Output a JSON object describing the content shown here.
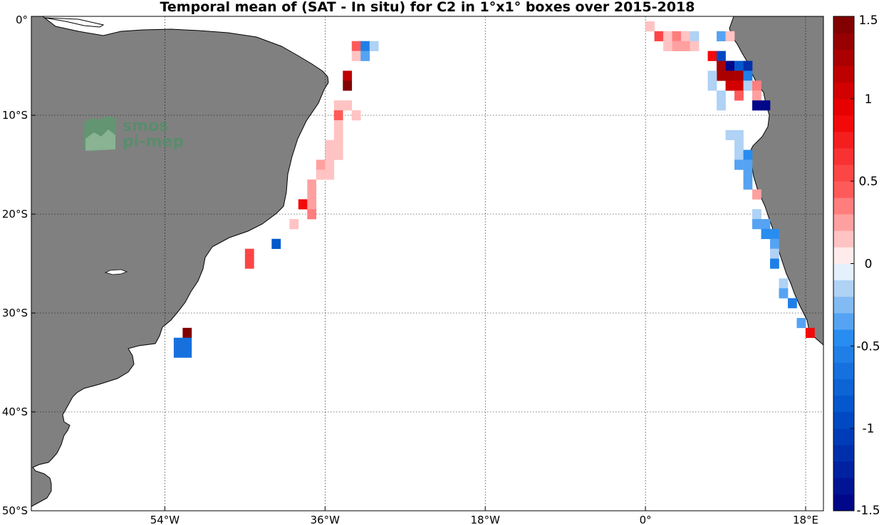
{
  "title": "Temporal mean of (SAT - In situ) for C2 in 1°x1° boxes over 2015-2018",
  "logo": {
    "line1": "smos",
    "line2": "pi-mep"
  },
  "map": {
    "lon_range": [
      -69,
      20
    ],
    "lat_range": [
      -50,
      0
    ],
    "land_color": "#808080",
    "ocean_color": "#ffffff",
    "gridlines": "dotted",
    "lon_ticks": [
      {
        "value": -54,
        "label": "54°W"
      },
      {
        "value": -36,
        "label": "36°W"
      },
      {
        "value": -18,
        "label": "18°W"
      },
      {
        "value": 0,
        "label": "0°"
      },
      {
        "value": 18,
        "label": "18°E"
      }
    ],
    "lat_ticks": [
      {
        "value": 0,
        "label": "0°"
      },
      {
        "value": -10,
        "label": "10°S"
      },
      {
        "value": -20,
        "label": "20°S"
      },
      {
        "value": -30,
        "label": "30°S"
      },
      {
        "value": -40,
        "label": "40°S"
      },
      {
        "value": -50,
        "label": "50°S"
      }
    ]
  },
  "colorbar": {
    "min": -1.5,
    "max": 1.5,
    "position": "right",
    "ticks": [
      {
        "value": 1.5,
        "label": "1.5"
      },
      {
        "value": 1,
        "label": "1"
      },
      {
        "value": 0.5,
        "label": "0.5"
      },
      {
        "value": 0,
        "label": "0"
      },
      {
        "value": -0.5,
        "label": "-0.5"
      },
      {
        "value": -1,
        "label": "-1"
      },
      {
        "value": -1.5,
        "label": "-1.5"
      }
    ]
  },
  "chart_data": {
    "type": "heatmap",
    "title": "Temporal mean of (SAT - In situ) for C2 in 1°x1° boxes over 2015-2018",
    "cell_size_deg": 1,
    "cells": [
      {
        "lon": -33,
        "lat": -3,
        "value": 0.4
      },
      {
        "lon": -32,
        "lat": -3,
        "value": -0.6
      },
      {
        "lon": -31,
        "lat": -3,
        "value": -0.1
      },
      {
        "lon": -33,
        "lat": -4,
        "value": 0.15
      },
      {
        "lon": -32,
        "lat": -4,
        "value": -0.3
      },
      {
        "lon": -34,
        "lat": -6,
        "value": 1.1
      },
      {
        "lon": -34,
        "lat": -7,
        "value": 1.5
      },
      {
        "lon": -35,
        "lat": -9,
        "value": 0.1
      },
      {
        "lon": -34,
        "lat": -9,
        "value": 0.1
      },
      {
        "lon": -35,
        "lat": -10,
        "value": 0.4
      },
      {
        "lon": -33,
        "lat": -10,
        "value": 0.1
      },
      {
        "lon": -35,
        "lat": -11,
        "value": 0.1
      },
      {
        "lon": -35,
        "lat": -12,
        "value": 0.1
      },
      {
        "lon": -36,
        "lat": -13,
        "value": 0.1
      },
      {
        "lon": -35,
        "lat": -13,
        "value": 0.1
      },
      {
        "lon": -36,
        "lat": -14,
        "value": 0.1
      },
      {
        "lon": -35,
        "lat": -14,
        "value": 0.1
      },
      {
        "lon": -37,
        "lat": -15,
        "value": 0.2
      },
      {
        "lon": -36,
        "lat": -15,
        "value": 0.1
      },
      {
        "lon": -37,
        "lat": -16,
        "value": 0.1
      },
      {
        "lon": -36,
        "lat": -16,
        "value": 0.1
      },
      {
        "lon": -38,
        "lat": -17,
        "value": 0.2
      },
      {
        "lon": -38,
        "lat": -18,
        "value": 0.2
      },
      {
        "lon": -39,
        "lat": -19,
        "value": 0.9
      },
      {
        "lon": -38,
        "lat": -19,
        "value": 0.2
      },
      {
        "lon": -38,
        "lat": -20,
        "value": 0.3
      },
      {
        "lon": -40,
        "lat": -21,
        "value": 0.1
      },
      {
        "lon": -42,
        "lat": -23,
        "value": -0.8
      },
      {
        "lon": -45,
        "lat": -24,
        "value": 0.5
      },
      {
        "lon": -45,
        "lat": -25,
        "value": 0.5
      },
      {
        "lon": -52,
        "lat": -32,
        "value": 1.5
      },
      {
        "lon": -53,
        "lat": -33,
        "value": -0.7
      },
      {
        "lon": -52,
        "lat": -33,
        "value": -0.7
      },
      {
        "lon": -53,
        "lat": -34,
        "value": -0.7
      },
      {
        "lon": -52,
        "lat": -34,
        "value": -0.7
      },
      {
        "lon": 0,
        "lat": -1,
        "value": 0.1
      },
      {
        "lon": 1,
        "lat": -2,
        "value": 0.5
      },
      {
        "lon": 2,
        "lat": -2,
        "value": 0.1
      },
      {
        "lon": 3,
        "lat": -2,
        "value": 0.3
      },
      {
        "lon": 4,
        "lat": -2,
        "value": 0.1
      },
      {
        "lon": 5,
        "lat": -2,
        "value": -0.1
      },
      {
        "lon": 8,
        "lat": -2,
        "value": -0.4
      },
      {
        "lon": 9,
        "lat": -2,
        "value": 0.1
      },
      {
        "lon": 2,
        "lat": -3,
        "value": 0.1
      },
      {
        "lon": 3,
        "lat": -3,
        "value": 0.2
      },
      {
        "lon": 4,
        "lat": -3,
        "value": 0.2
      },
      {
        "lon": 5,
        "lat": -3,
        "value": 0.1
      },
      {
        "lon": 7,
        "lat": -4,
        "value": 0.8
      },
      {
        "lon": 8,
        "lat": -4,
        "value": -0.9
      },
      {
        "lon": 8,
        "lat": -5,
        "value": 1.3
      },
      {
        "lon": 9,
        "lat": -5,
        "value": -1.5
      },
      {
        "lon": 10,
        "lat": -5,
        "value": -0.8
      },
      {
        "lon": 11,
        "lat": -5,
        "value": -1.2
      },
      {
        "lon": 8,
        "lat": -6,
        "value": 1.3
      },
      {
        "lon": 9,
        "lat": -6,
        "value": 1.2
      },
      {
        "lon": 10,
        "lat": -6,
        "value": 1.2
      },
      {
        "lon": 11,
        "lat": -6,
        "value": -0.6
      },
      {
        "lon": 7,
        "lat": -6,
        "value": -0.1
      },
      {
        "lon": 7,
        "lat": -7,
        "value": -0.1
      },
      {
        "lon": 9,
        "lat": -7,
        "value": 1.0
      },
      {
        "lon": 10,
        "lat": -7,
        "value": 1.0
      },
      {
        "lon": 11,
        "lat": -7,
        "value": -0.1
      },
      {
        "lon": 12,
        "lat": -7,
        "value": 0.3
      },
      {
        "lon": 8,
        "lat": -8,
        "value": -0.2
      },
      {
        "lon": 10,
        "lat": -8,
        "value": 0.4
      },
      {
        "lon": 12,
        "lat": -8,
        "value": 0.2
      },
      {
        "lon": 8,
        "lat": -9,
        "value": -0.2
      },
      {
        "lon": 12,
        "lat": -9,
        "value": -1.5
      },
      {
        "lon": 13,
        "lat": -9,
        "value": -1.5
      },
      {
        "lon": 9,
        "lat": -12,
        "value": -0.2
      },
      {
        "lon": 10,
        "lat": -12,
        "value": -0.1
      },
      {
        "lon": 10,
        "lat": -13,
        "value": -0.2
      },
      {
        "lon": 10,
        "lat": -14,
        "value": -0.2
      },
      {
        "lon": 11,
        "lat": -14,
        "value": -0.5
      },
      {
        "lon": 10,
        "lat": -15,
        "value": -0.3
      },
      {
        "lon": 11,
        "lat": -15,
        "value": -0.3
      },
      {
        "lon": 11,
        "lat": -16,
        "value": -0.4
      },
      {
        "lon": 11,
        "lat": -17,
        "value": -0.4
      },
      {
        "lon": 12,
        "lat": -18,
        "value": 0.2
      },
      {
        "lon": 12,
        "lat": -20,
        "value": -0.2
      },
      {
        "lon": 12,
        "lat": -21,
        "value": -0.3
      },
      {
        "lon": 13,
        "lat": -21,
        "value": -0.4
      },
      {
        "lon": 13,
        "lat": -22,
        "value": -0.5
      },
      {
        "lon": 14,
        "lat": -22,
        "value": -0.5
      },
      {
        "lon": 14,
        "lat": -23,
        "value": -0.4
      },
      {
        "lon": 14,
        "lat": -24,
        "value": -0.2
      },
      {
        "lon": 14,
        "lat": -25,
        "value": -0.6
      },
      {
        "lon": 15,
        "lat": -27,
        "value": -0.1
      },
      {
        "lon": 15,
        "lat": -28,
        "value": -0.3
      },
      {
        "lon": 16,
        "lat": -29,
        "value": -0.6
      },
      {
        "lon": 17,
        "lat": -31,
        "value": -0.3
      },
      {
        "lon": 18,
        "lat": -32,
        "value": 0.8
      }
    ]
  }
}
